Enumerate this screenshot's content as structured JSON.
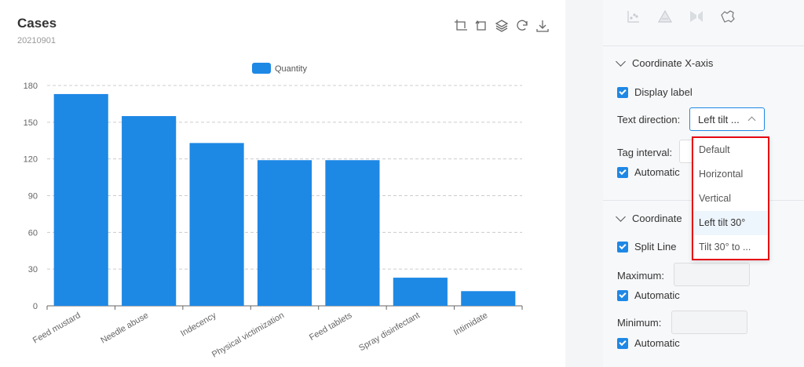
{
  "header": {
    "title": "Cases",
    "subtitle": "20210901"
  },
  "toolbar": {
    "icons": [
      "zoom-icon",
      "zoom-reset-icon",
      "stack-icon",
      "refresh-icon",
      "download-icon"
    ]
  },
  "chart_data": {
    "type": "bar",
    "categories": [
      "Feed mustard",
      "Needle abuse",
      "Indecency",
      "Physical victimization",
      "Feed tablets",
      "Spray disinfectant",
      "Intimidate"
    ],
    "series": [
      {
        "name": "Quantity",
        "values": [
          173,
          155,
          133,
          119,
          119,
          23,
          12
        ],
        "color": "#1e88e5"
      }
    ],
    "ylim": [
      0,
      180
    ],
    "yticks": [
      0,
      30,
      60,
      90,
      120,
      150,
      180
    ],
    "grid": true,
    "legend_position": "top-center",
    "xlabel_rotation": "Left tilt 30°"
  },
  "panel": {
    "icons": [
      "scatter-icon",
      "triangle-icon",
      "funnel-icon",
      "map-icon"
    ],
    "xaxis": {
      "header": "Coordinate X-axis",
      "display_label": "Display label",
      "text_direction_label": "Text direction:",
      "text_direction_value": "Left tilt ...",
      "tag_interval_label": "Tag interval:",
      "automatic": "Automatic",
      "options": [
        "Default",
        "Horizontal",
        "Vertical",
        "Left tilt 30°",
        "Tilt 30° to ..."
      ],
      "selected_option": "Left tilt 30°"
    },
    "yaxis": {
      "header": "Coordinate",
      "split_line": "Split Line",
      "maximum_label": "Maximum:",
      "automatic_max": "Automatic",
      "minimum_label": "Minimum:",
      "automatic_min": "Automatic"
    }
  }
}
